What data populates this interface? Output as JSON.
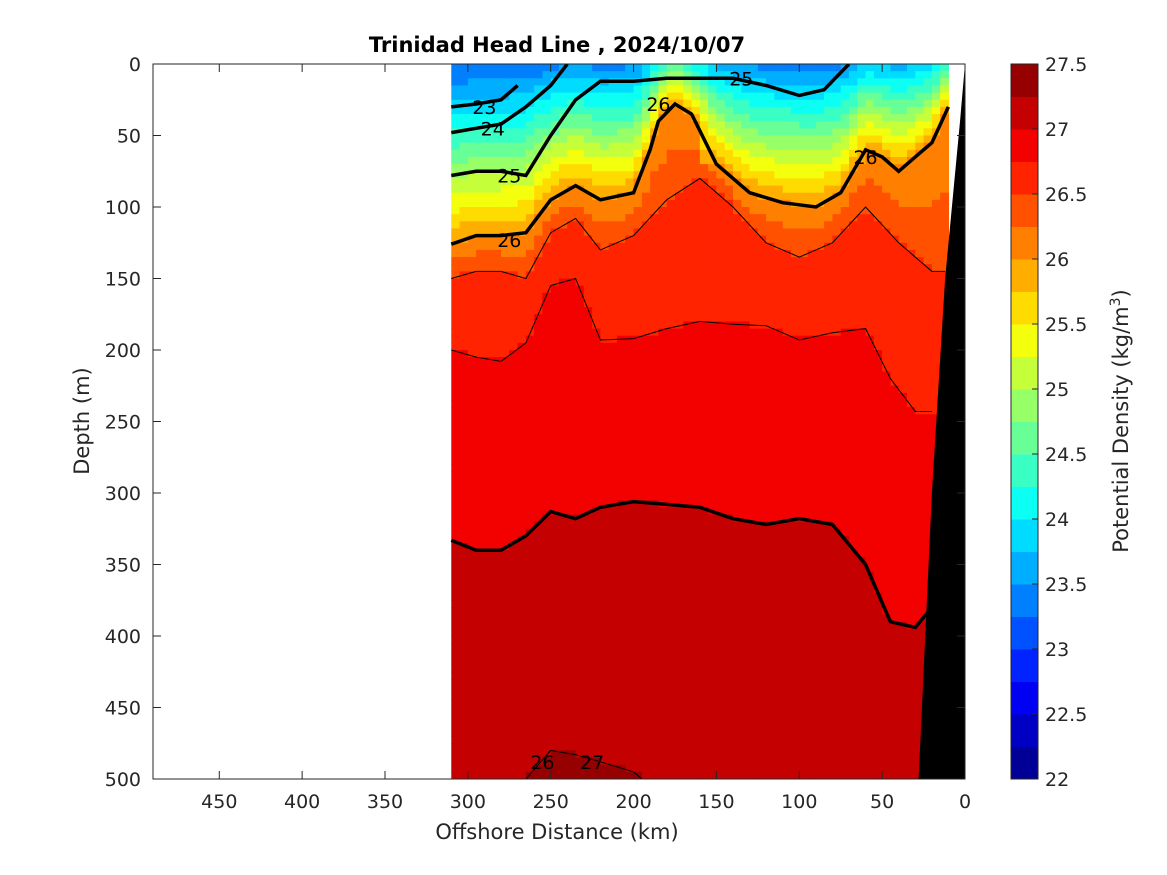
{
  "chart_data": {
    "type": "heatmap",
    "subtype": "filled-contour-section",
    "title": "Trinidad Head Line , 2024/10/07",
    "xlabel": "Offshore Distance (km)",
    "ylabel": "Depth (m)",
    "x_reversed": true,
    "y_reversed": true,
    "xlim": [
      490,
      0
    ],
    "ylim": [
      0,
      500
    ],
    "x_ticks": [
      "450",
      "400",
      "350",
      "300",
      "250",
      "200",
      "150",
      "100",
      "50",
      "0"
    ],
    "y_ticks": [
      "0",
      "50",
      "100",
      "150",
      "200",
      "250",
      "300",
      "350",
      "400",
      "450",
      "500"
    ],
    "data_extent_km": [
      310,
      10
    ],
    "colorbar": {
      "label": "Potential Density (kg/m",
      "label_superscript": "3",
      "label_suffix": ")",
      "range": [
        22,
        27.5
      ],
      "ticks": [
        "22",
        "22.5",
        "23",
        "23.5",
        "24",
        "24.5",
        "25",
        "25.5",
        "26",
        "26.5",
        "27",
        "27.5"
      ],
      "colormap": "jet",
      "step": 0.25
    },
    "contour_labels": [
      "23",
      "24",
      "25",
      "26",
      "25",
      "26",
      "26",
      "26",
      "27"
    ],
    "bathymetry_color": "#000000",
    "contour_profiles_sigma_depth_m": [
      {
        "sigma": 23.0,
        "x": [
          310,
          295,
          280,
          270
        ],
        "depth": [
          30,
          28,
          25,
          15
        ]
      },
      {
        "sigma": 24.0,
        "x": [
          310,
          295,
          280,
          265,
          250,
          240
        ],
        "depth": [
          48,
          45,
          42,
          30,
          15,
          0
        ]
      },
      {
        "sigma": 25.0,
        "x": [
          310,
          295,
          280,
          265,
          250,
          235,
          220,
          200,
          180,
          160,
          140,
          120,
          100,
          85,
          70
        ],
        "depth": [
          78,
          75,
          75,
          78,
          50,
          25,
          12,
          12,
          10,
          10,
          10,
          15,
          22,
          18,
          0
        ]
      },
      {
        "sigma": 26.0,
        "x": [
          310,
          295,
          280,
          265,
          250,
          235,
          220,
          200,
          190,
          185,
          175,
          165,
          150,
          130,
          110,
          90,
          75,
          60,
          50,
          40,
          30,
          20,
          10
        ],
        "depth": [
          126,
          120,
          120,
          118,
          95,
          85,
          95,
          90,
          60,
          40,
          28,
          35,
          70,
          90,
          97,
          100,
          90,
          60,
          65,
          75,
          65,
          55,
          30
        ]
      },
      {
        "sigma": 26.5,
        "x": [
          310,
          295,
          280,
          265,
          250,
          235,
          220,
          200,
          180,
          160,
          140,
          120,
          100,
          80,
          60,
          40,
          20,
          12
        ],
        "depth": [
          150,
          145,
          145,
          150,
          118,
          108,
          130,
          120,
          95,
          80,
          100,
          125,
          135,
          125,
          100,
          125,
          145,
          145
        ]
      },
      {
        "sigma": 26.75,
        "x": [
          310,
          295,
          280,
          265,
          250,
          235,
          220,
          200,
          180,
          160,
          140,
          120,
          100,
          80,
          60,
          45,
          30,
          20
        ],
        "depth": [
          200,
          205,
          208,
          195,
          155,
          150,
          193,
          192,
          185,
          180,
          182,
          183,
          193,
          188,
          185,
          220,
          243,
          243
        ]
      },
      {
        "sigma": 27.0,
        "x": [
          310,
          295,
          280,
          265,
          250,
          235,
          220,
          200,
          180,
          160,
          140,
          120,
          100,
          80,
          60,
          45,
          30,
          20
        ],
        "depth": [
          333,
          340,
          340,
          330,
          313,
          318,
          310,
          306,
          308,
          310,
          318,
          322,
          318,
          322,
          350,
          390,
          394,
          380
        ]
      },
      {
        "sigma": 27.25,
        "x": [
          265,
          250,
          235,
          220,
          200,
          195
        ],
        "depth": [
          500,
          480,
          483,
          488,
          495,
          500
        ]
      }
    ]
  }
}
